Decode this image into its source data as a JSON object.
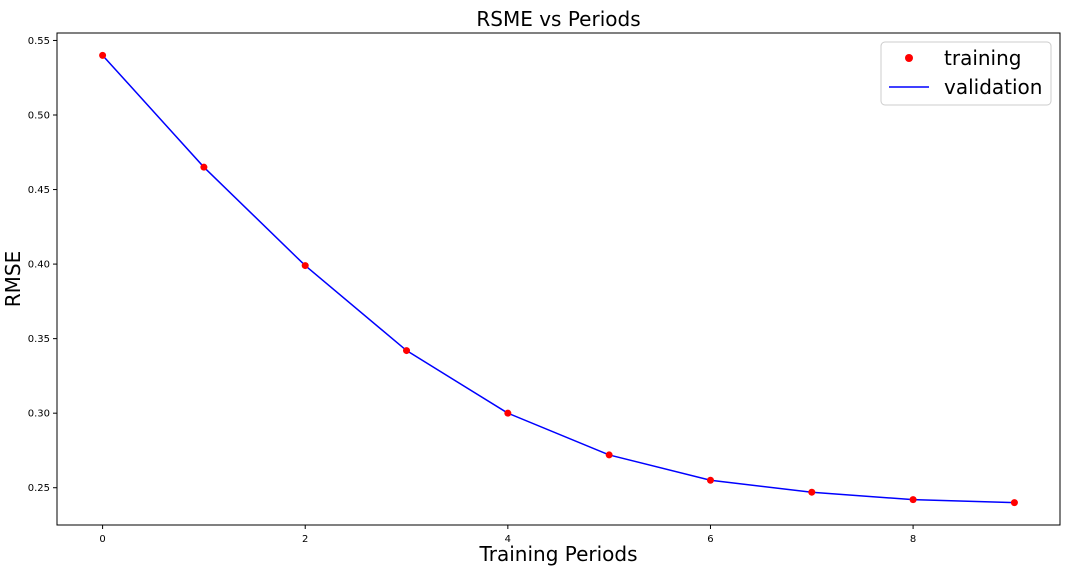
{
  "chart_data": {
    "type": "line",
    "title": "RSME vs Periods",
    "xlabel": "Training Periods",
    "ylabel": "RMSE",
    "xlim": [
      -0.45,
      9.45
    ],
    "ylim": [
      0.225,
      0.555
    ],
    "xticks": [
      0,
      2,
      4,
      6,
      8
    ],
    "xtick_labels": [
      "0",
      "2",
      "4",
      "6",
      "8"
    ],
    "yticks": [
      0.25,
      0.3,
      0.35,
      0.4,
      0.45,
      0.5,
      0.55
    ],
    "ytick_labels": [
      "0.25",
      "0.30",
      "0.35",
      "0.40",
      "0.45",
      "0.50",
      "0.55"
    ],
    "grid": false,
    "legend_position": "top-right",
    "x": [
      0,
      1,
      2,
      3,
      4,
      5,
      6,
      7,
      8,
      9
    ],
    "series": [
      {
        "name": "training",
        "style": "markers",
        "color": "#ff0000",
        "values": [
          0.54,
          0.465,
          0.399,
          0.342,
          0.3,
          0.272,
          0.255,
          0.247,
          0.242,
          0.24
        ]
      },
      {
        "name": "validation",
        "style": "line",
        "color": "#0000ff",
        "values": [
          0.54,
          0.465,
          0.399,
          0.342,
          0.3,
          0.272,
          0.255,
          0.247,
          0.242,
          0.24
        ]
      }
    ]
  }
}
